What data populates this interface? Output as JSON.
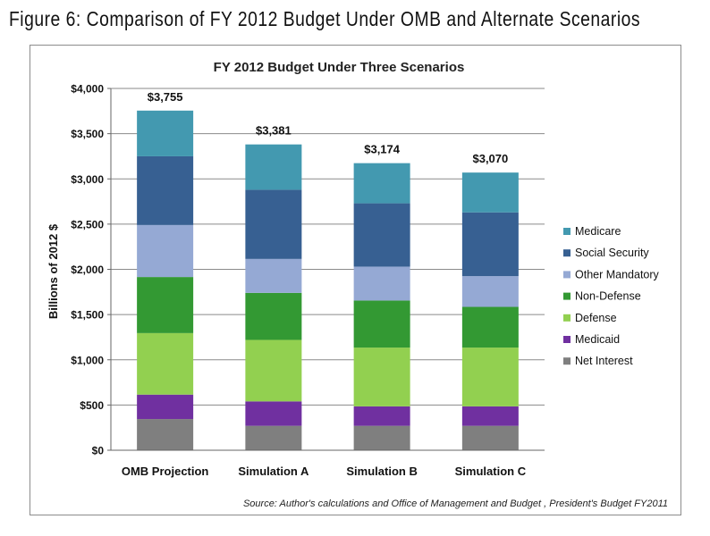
{
  "figure_caption": "Figure 6: Comparison of FY 2012 Budget Under OMB and Alternate Scenarios",
  "source_note": "Source:  Author's calculations and Office of Management and Budget , President's Budget FY2011",
  "colors": {
    "net_interest": "#7f7f7f",
    "medicaid": "#7030a0",
    "defense": "#92d050",
    "non_defense": "#339933",
    "other_mandatory": "#95a9d4",
    "social_security": "#376092",
    "medicare": "#4399b0"
  },
  "chart_data": {
    "type": "bar",
    "stacked": true,
    "title": "FY 2012 Budget Under Three Scenarios",
    "ylabel": "Billions of 2012 $",
    "xlabel": "",
    "ylim": [
      0,
      4000
    ],
    "y_ticks": [
      0,
      500,
      1000,
      1500,
      2000,
      2500,
      3000,
      3500,
      4000
    ],
    "y_tick_labels": [
      "$0",
      "$500",
      "$1,000",
      "$1,500",
      "$2,000",
      "$2,500",
      "$3,000",
      "$3,500",
      "$4,000"
    ],
    "grid": true,
    "legend_position": "right",
    "categories": [
      "OMB Projection",
      "Simulation A",
      "Simulation B",
      "Simulation C"
    ],
    "totals": [
      3755,
      3381,
      3174,
      3070
    ],
    "total_labels": [
      "$3,755",
      "$3,381",
      "$3,174",
      "$3,070"
    ],
    "series": [
      {
        "name": "Net Interest",
        "color": "#7f7f7f",
        "values": [
          345,
          270,
          270,
          270
        ]
      },
      {
        "name": "Medicaid",
        "color": "#7030a0",
        "values": [
          270,
          270,
          215,
          215
        ]
      },
      {
        "name": "Defense",
        "color": "#92d050",
        "values": [
          680,
          680,
          650,
          650
        ]
      },
      {
        "name": "Non-Defense",
        "color": "#339933",
        "values": [
          620,
          520,
          520,
          450
        ]
      },
      {
        "name": "Other Mandatory",
        "color": "#95a9d4",
        "values": [
          575,
          375,
          375,
          340
        ]
      },
      {
        "name": "Social Security",
        "color": "#376092",
        "values": [
          760,
          765,
          700,
          705
        ]
      },
      {
        "name": "Medicare",
        "color": "#4399b0",
        "values": [
          505,
          501,
          444,
          440
        ]
      }
    ]
  }
}
